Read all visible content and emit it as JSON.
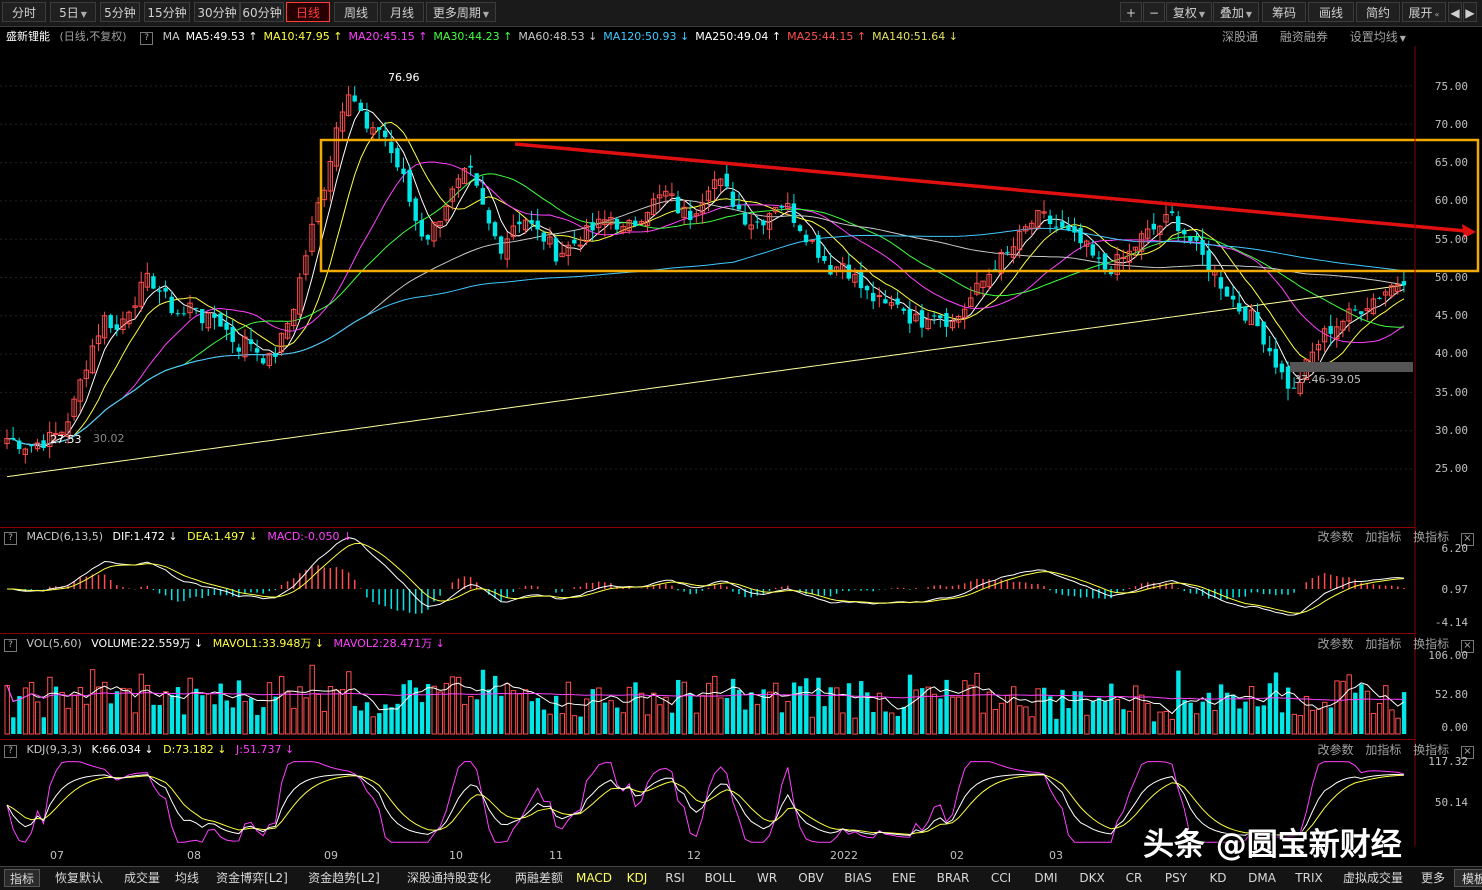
{
  "toolbar": {
    "period_tabs": [
      "分时",
      "5日",
      "5分钟",
      "15分钟",
      "30分钟",
      "60分钟",
      "日线",
      "周线",
      "月线",
      "更多周期"
    ],
    "active_tab": "日线",
    "right_buttons": [
      "+",
      "−",
      "复权",
      "叠加",
      "筹码",
      "画线",
      "简约",
      "展开"
    ]
  },
  "stock": {
    "name": "盛新锂能",
    "mode": "(日线,不复权)"
  },
  "ma_legend": [
    {
      "label": "MA",
      "color": "#c8c8c8"
    },
    {
      "label": "MA5:49.53 ↑",
      "color": "#ffffff"
    },
    {
      "label": "MA10:47.95 ↑",
      "color": "#ffff40"
    },
    {
      "label": "MA20:45.15 ↑",
      "color": "#ff40ff"
    },
    {
      "label": "MA30:44.23 ↑",
      "color": "#40ff40"
    },
    {
      "label": "MA60:48.53 ↓",
      "color": "#c8c8c8"
    },
    {
      "label": "MA120:50.93 ↓",
      "color": "#40c8ff"
    },
    {
      "label": "MA250:49.04 ↑",
      "color": "#ffffff"
    },
    {
      "label": "MA25:44.15 ↑",
      "color": "#ff5050"
    },
    {
      "label": "MA140:51.64 ↓",
      "color": "#e0e060"
    }
  ],
  "header_links": [
    "深股通",
    "融资融券",
    "设置均线"
  ],
  "price_axis": [
    "75.00",
    "70.00",
    "65.00",
    "60.00",
    "55.00",
    "50.00",
    "45.00",
    "40.00",
    "35.00",
    "30.00",
    "25.00"
  ],
  "annotations": {
    "high": "76.96",
    "low": "27.53",
    "low_right": "30.02",
    "support": "37.46-39.05"
  },
  "macd": {
    "title": "MACD(6,13,5)",
    "dif": "DIF:1.472 ↓",
    "dea": "DEA:1.497 ↓",
    "macd": "MACD:-0.050 ↓",
    "axis": [
      "6.20",
      "0.97",
      "-4.14"
    ]
  },
  "vol": {
    "title": "VOL(5,60)",
    "volume": "VOLUME:22.559万 ↓",
    "mavol1": "MAVOL1:33.948万 ↓",
    "mavol2": "MAVOL2:28.471万 ↓",
    "axis": [
      "106.00",
      "52.80",
      "0.00"
    ]
  },
  "kdj": {
    "title": "KDJ(9,3,3)",
    "k": "K:66.034 ↓",
    "d": "D:73.182 ↓",
    "j": "J:51.737 ↓",
    "axis": [
      "117.32",
      "50.14"
    ]
  },
  "panel_tools": [
    "改参数",
    "加指标",
    "换指标"
  ],
  "dates": [
    "07",
    "08",
    "09",
    "10",
    "11",
    "12",
    "2022",
    "02",
    "03"
  ],
  "bottom_tabs": [
    "指标",
    "恢复默认",
    "成交量",
    "均线",
    "资金博弈[L2]",
    "资金趋势[L2]",
    "深股通持股变化",
    "两融差额",
    "MACD",
    "KDJ",
    "RSI",
    "BOLL",
    "WR",
    "OBV",
    "BIAS",
    "ENE",
    "BRAR",
    "CCI",
    "DMI",
    "DKX",
    "CR",
    "PSY",
    "KD",
    "DMA",
    "TRIX",
    "虚拟成交量",
    "更多",
    "模板"
  ],
  "watermark": "头条 @圆宝新财经",
  "colors": {
    "up": "#ff4d4d",
    "down": "#00e5e5",
    "box": "#f2a900",
    "trend": "#e01010"
  },
  "chart_data": {
    "type": "candlestick",
    "title": "盛新锂能 日线",
    "close_path": [
      29,
      28.5,
      28,
      28.5,
      29,
      30,
      33,
      38,
      42,
      45,
      43,
      46,
      48,
      50,
      48,
      46,
      45,
      47,
      44,
      45,
      43,
      41,
      42,
      40,
      39,
      42,
      46,
      52,
      58,
      63,
      70,
      75,
      72,
      68,
      70,
      66,
      63,
      58,
      55,
      57,
      60,
      62,
      64,
      60,
      56,
      54,
      57,
      58,
      56,
      55,
      53,
      54,
      55,
      56,
      57,
      58,
      56,
      57,
      59,
      60,
      61,
      59,
      58,
      60,
      63,
      62,
      60,
      58,
      57,
      58,
      60,
      59,
      57,
      55,
      53,
      51,
      52,
      50,
      48,
      47,
      46,
      47,
      45,
      44,
      46,
      45,
      44,
      46,
      48,
      50,
      52,
      53,
      55,
      57,
      58,
      57,
      56,
      55,
      54,
      52,
      51,
      52,
      53,
      55,
      56,
      57,
      58,
      56,
      54,
      52,
      50,
      48,
      46,
      45,
      43,
      40,
      37,
      35,
      38,
      41,
      43,
      44,
      45,
      46,
      47,
      48,
      49,
      50
    ],
    "ylim": [
      22,
      79
    ]
  }
}
